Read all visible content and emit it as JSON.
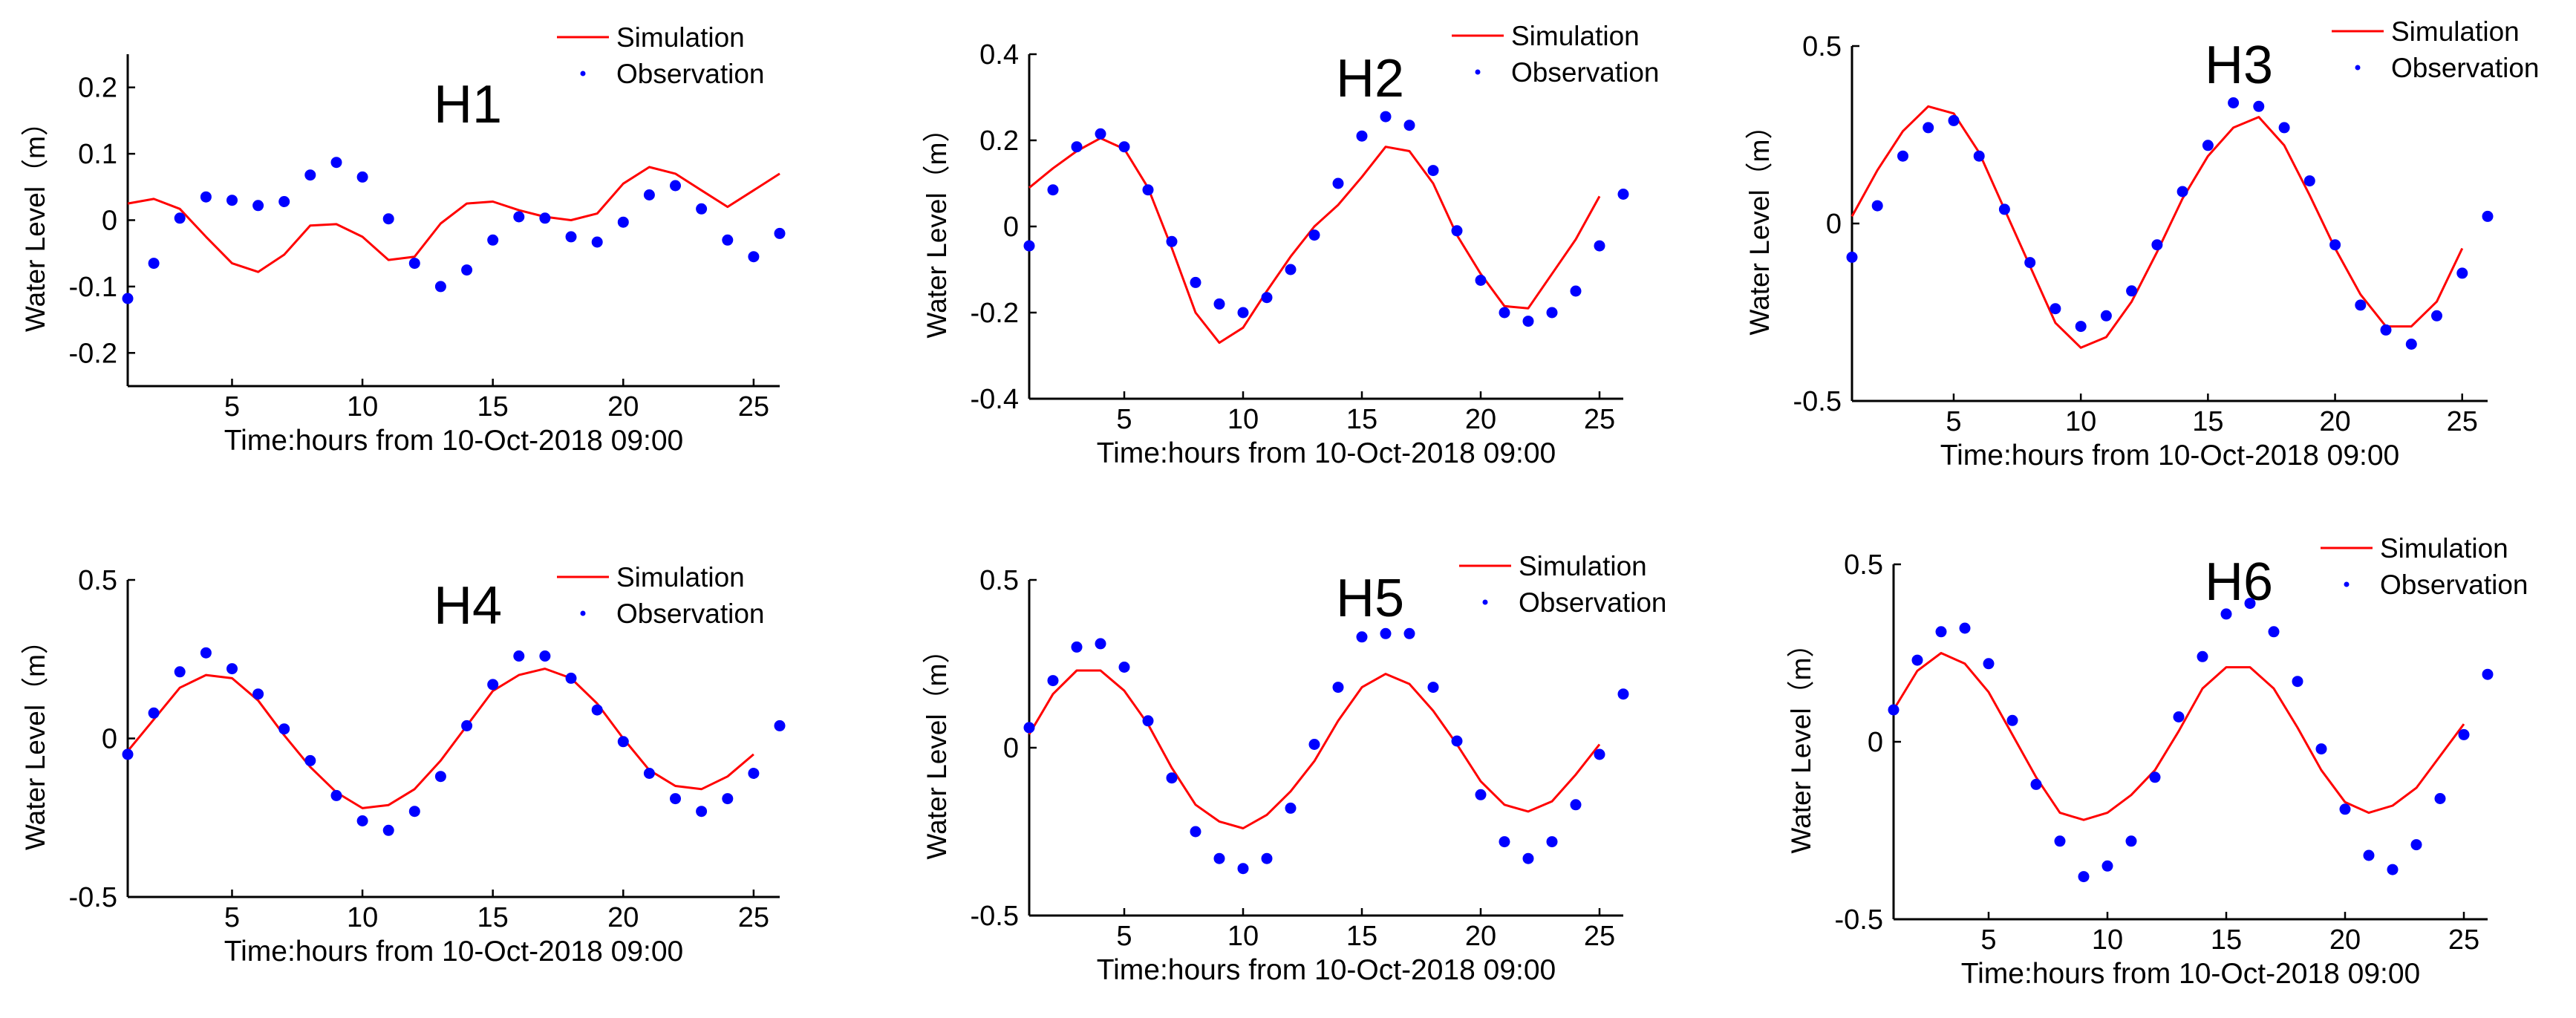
{
  "figure": {
    "colors": {
      "simulation": "#ff0000",
      "observation": "#0000ff",
      "axis": "#000000"
    }
  },
  "chart_data": [
    {
      "type": "line",
      "panel": "H1",
      "title": "H1",
      "xlabel": "Time:hours from 10-Oct-2018 09:00",
      "ylabel": "Water Level（m）",
      "xlim": [
        1,
        26
      ],
      "ylim": [
        -0.25,
        0.25
      ],
      "xticks": [
        5,
        10,
        15,
        20,
        25
      ],
      "yticks": [
        -0.2,
        -0.1,
        0,
        0.1,
        0.2
      ],
      "ytick_labels": [
        "-0.2",
        "-0.1",
        "0",
        "0.1",
        "0.2"
      ],
      "legend": [
        "Simulation",
        "Observation"
      ],
      "legend_position": "top-right",
      "series": [
        {
          "name": "Simulation",
          "style": "line",
          "x": [
            1,
            2,
            3,
            4,
            5,
            6,
            7,
            8,
            9,
            10,
            11,
            12,
            13,
            14,
            15,
            16,
            17,
            18,
            19,
            20,
            21,
            22,
            23,
            24,
            25,
            26
          ],
          "values": [
            0.025,
            0.032,
            0.017,
            -0.025,
            -0.065,
            -0.078,
            -0.052,
            -0.008,
            -0.006,
            -0.025,
            -0.06,
            -0.055,
            -0.005,
            0.025,
            0.028,
            0.015,
            0.005,
            0.0,
            0.01,
            0.055,
            0.08,
            0.07,
            0.045,
            0.02,
            0.045,
            0.07
          ]
        },
        {
          "name": "Observation",
          "style": "markers",
          "x": [
            1,
            2,
            3,
            4,
            5,
            6,
            7,
            8,
            9,
            10,
            11,
            12,
            13,
            14,
            15,
            16,
            17,
            18,
            19,
            20,
            21,
            22,
            23,
            24,
            25,
            26
          ],
          "values": [
            -0.118,
            -0.065,
            0.003,
            0.035,
            0.03,
            0.022,
            0.028,
            0.068,
            0.087,
            0.065,
            0.002,
            -0.065,
            -0.1,
            -0.075,
            -0.03,
            0.005,
            0.003,
            -0.025,
            -0.033,
            -0.003,
            0.038,
            0.052,
            0.017,
            -0.03,
            -0.055,
            -0.02
          ]
        }
      ]
    },
    {
      "type": "line",
      "panel": "H2",
      "title": "H2",
      "xlabel": "Time:hours from 10-Oct-2018 09:00",
      "ylabel": "Water Level（m）",
      "xlim": [
        1,
        26
      ],
      "ylim": [
        -0.4,
        0.4
      ],
      "xticks": [
        5,
        10,
        15,
        20,
        25
      ],
      "yticks": [
        -0.4,
        -0.2,
        0,
        0.2,
        0.4
      ],
      "ytick_labels": [
        "-0.4",
        "-0.2",
        "0",
        "0.2",
        "0.4"
      ],
      "legend": [
        "Simulation",
        "Observation"
      ],
      "legend_position": "top-right",
      "series": [
        {
          "name": "Simulation",
          "style": "line",
          "x": [
            1,
            2,
            3,
            4,
            5,
            6,
            7,
            8,
            9,
            10,
            11,
            12,
            13,
            14,
            15,
            16,
            17,
            18,
            19,
            20,
            21,
            22,
            23,
            24,
            25
          ],
          "values": [
            0.09,
            0.135,
            0.175,
            0.205,
            0.18,
            0.09,
            -0.05,
            -0.2,
            -0.27,
            -0.235,
            -0.15,
            -0.07,
            0.0,
            0.05,
            0.115,
            0.185,
            0.175,
            0.1,
            -0.02,
            -0.11,
            -0.185,
            -0.19,
            -0.11,
            -0.03,
            0.07
          ]
        },
        {
          "name": "Observation",
          "style": "markers",
          "x": [
            1,
            2,
            3,
            4,
            5,
            6,
            7,
            8,
            9,
            10,
            11,
            12,
            13,
            14,
            15,
            16,
            17,
            18,
            19,
            20,
            21,
            22,
            23,
            24,
            25,
            26
          ],
          "values": [
            -0.045,
            0.085,
            0.185,
            0.215,
            0.185,
            0.085,
            -0.035,
            -0.13,
            -0.18,
            -0.2,
            -0.165,
            -0.1,
            -0.02,
            0.1,
            0.21,
            0.255,
            0.235,
            0.13,
            -0.01,
            -0.125,
            -0.2,
            -0.22,
            -0.2,
            -0.15,
            -0.045,
            0.075
          ]
        }
      ]
    },
    {
      "type": "line",
      "panel": "H3",
      "title": "H3",
      "xlabel": "Time:hours from 10-Oct-2018 09:00",
      "ylabel": "Water Level（m）",
      "xlim": [
        1,
        26
      ],
      "ylim": [
        -0.5,
        0.5
      ],
      "xticks": [
        5,
        10,
        15,
        20,
        25
      ],
      "yticks": [
        -0.5,
        0,
        0.5
      ],
      "ytick_labels": [
        "-0.5",
        "0",
        "0.5"
      ],
      "legend": [
        "Simulation",
        "Observation"
      ],
      "legend_position": "top-right",
      "series": [
        {
          "name": "Simulation",
          "style": "line",
          "x": [
            1,
            2,
            3,
            4,
            5,
            6,
            7,
            8,
            9,
            10,
            11,
            12,
            13,
            14,
            15,
            16,
            17,
            18,
            19,
            20,
            21,
            22,
            23,
            24,
            25
          ],
          "values": [
            0.02,
            0.15,
            0.26,
            0.33,
            0.31,
            0.2,
            0.04,
            -0.12,
            -0.28,
            -0.35,
            -0.32,
            -0.22,
            -0.08,
            0.07,
            0.19,
            0.27,
            0.3,
            0.22,
            0.08,
            -0.07,
            -0.2,
            -0.29,
            -0.29,
            -0.22,
            -0.07
          ]
        },
        {
          "name": "Observation",
          "style": "markers",
          "x": [
            1,
            2,
            3,
            4,
            5,
            6,
            7,
            8,
            9,
            10,
            11,
            12,
            13,
            14,
            15,
            16,
            17,
            18,
            19,
            20,
            21,
            22,
            23,
            24,
            25,
            26
          ],
          "values": [
            -0.095,
            0.05,
            0.19,
            0.27,
            0.29,
            0.19,
            0.04,
            -0.11,
            -0.24,
            -0.29,
            -0.26,
            -0.19,
            -0.06,
            0.09,
            0.22,
            0.34,
            0.33,
            0.27,
            0.12,
            -0.06,
            -0.23,
            -0.3,
            -0.34,
            -0.26,
            -0.14,
            0.02
          ]
        }
      ]
    },
    {
      "type": "line",
      "panel": "H4",
      "title": "H4",
      "xlabel": "Time:hours from 10-Oct-2018 09:00",
      "ylabel": "Water Level（m）",
      "xlim": [
        1,
        26
      ],
      "ylim": [
        -0.5,
        0.5
      ],
      "xticks": [
        5,
        10,
        15,
        20,
        25
      ],
      "yticks": [
        -0.5,
        0,
        0.5
      ],
      "ytick_labels": [
        "-0.5",
        "0",
        "0.5"
      ],
      "legend": [
        "Simulation",
        "Observation"
      ],
      "legend_position": "top-right",
      "series": [
        {
          "name": "Simulation",
          "style": "line",
          "x": [
            1,
            2,
            3,
            4,
            5,
            6,
            7,
            8,
            9,
            10,
            11,
            12,
            13,
            14,
            15,
            16,
            17,
            18,
            19,
            20,
            21,
            22,
            23,
            24,
            25
          ],
          "values": [
            -0.04,
            0.06,
            0.16,
            0.2,
            0.19,
            0.12,
            0.01,
            -0.09,
            -0.17,
            -0.22,
            -0.21,
            -0.16,
            -0.07,
            0.04,
            0.15,
            0.2,
            0.22,
            0.19,
            0.11,
            0.0,
            -0.1,
            -0.15,
            -0.16,
            -0.12,
            -0.05
          ]
        },
        {
          "name": "Observation",
          "style": "markers",
          "x": [
            1,
            2,
            3,
            4,
            5,
            6,
            7,
            8,
            9,
            10,
            11,
            12,
            13,
            14,
            15,
            16,
            17,
            18,
            19,
            20,
            21,
            22,
            23,
            24,
            25,
            26
          ],
          "values": [
            -0.05,
            0.08,
            0.21,
            0.27,
            0.22,
            0.14,
            0.03,
            -0.07,
            -0.18,
            -0.26,
            -0.29,
            -0.23,
            -0.12,
            0.04,
            0.17,
            0.26,
            0.26,
            0.19,
            0.09,
            -0.01,
            -0.11,
            -0.19,
            -0.23,
            -0.19,
            -0.11,
            0.04
          ]
        }
      ]
    },
    {
      "type": "line",
      "panel": "H5",
      "title": "H5",
      "xlabel": "Time:hours from 10-Oct-2018 09:00",
      "ylabel": "Water Level（m）",
      "xlim": [
        1,
        26
      ],
      "ylim": [
        -0.5,
        0.5
      ],
      "xticks": [
        5,
        10,
        15,
        20,
        25
      ],
      "yticks": [
        -0.5,
        0,
        0.5
      ],
      "ytick_labels": [
        "-0.5",
        "0",
        "0.5"
      ],
      "legend": [
        "Simulation",
        "Observation"
      ],
      "legend_position": "top-right",
      "series": [
        {
          "name": "Simulation",
          "style": "line",
          "x": [
            1,
            2,
            3,
            4,
            5,
            6,
            7,
            8,
            9,
            10,
            11,
            12,
            13,
            14,
            15,
            16,
            17,
            18,
            19,
            20,
            21,
            22,
            23,
            24,
            25
          ],
          "values": [
            0.04,
            0.16,
            0.23,
            0.23,
            0.17,
            0.07,
            -0.06,
            -0.17,
            -0.22,
            -0.24,
            -0.2,
            -0.13,
            -0.04,
            0.08,
            0.18,
            0.22,
            0.19,
            0.11,
            0.01,
            -0.1,
            -0.17,
            -0.19,
            -0.16,
            -0.08,
            0.01
          ]
        },
        {
          "name": "Observation",
          "style": "markers",
          "x": [
            1,
            2,
            3,
            4,
            5,
            6,
            7,
            8,
            9,
            10,
            11,
            12,
            13,
            14,
            15,
            16,
            17,
            18,
            19,
            20,
            21,
            22,
            23,
            24,
            25,
            26
          ],
          "values": [
            0.06,
            0.2,
            0.3,
            0.31,
            0.24,
            0.08,
            -0.09,
            -0.25,
            -0.33,
            -0.36,
            -0.33,
            -0.18,
            0.01,
            0.18,
            0.33,
            0.34,
            0.34,
            0.18,
            0.02,
            -0.14,
            -0.28,
            -0.33,
            -0.28,
            -0.17,
            -0.02,
            0.16
          ]
        }
      ]
    },
    {
      "type": "line",
      "panel": "H6",
      "title": "H6",
      "xlabel": "Time:hours from 10-Oct-2018 09:00",
      "ylabel": "Water Level（m）",
      "xlim": [
        1,
        26
      ],
      "ylim": [
        -0.5,
        0.5
      ],
      "xticks": [
        5,
        10,
        15,
        20,
        25
      ],
      "yticks": [
        -0.5,
        0,
        0.5
      ],
      "ytick_labels": [
        "-0.5",
        "0",
        "0.5"
      ],
      "legend": [
        "Simulation",
        "Observation"
      ],
      "legend_position": "top-right",
      "series": [
        {
          "name": "Simulation",
          "style": "line",
          "x": [
            1,
            2,
            3,
            4,
            5,
            6,
            7,
            8,
            9,
            10,
            11,
            12,
            13,
            14,
            15,
            16,
            17,
            18,
            19,
            20,
            21,
            22,
            23,
            24,
            25
          ],
          "values": [
            0.09,
            0.2,
            0.25,
            0.22,
            0.14,
            0.02,
            -0.1,
            -0.2,
            -0.22,
            -0.2,
            -0.15,
            -0.08,
            0.03,
            0.15,
            0.21,
            0.21,
            0.15,
            0.04,
            -0.08,
            -0.17,
            -0.2,
            -0.18,
            -0.13,
            -0.04,
            0.05
          ]
        },
        {
          "name": "Observation",
          "style": "markers",
          "x": [
            1,
            2,
            3,
            4,
            5,
            6,
            7,
            8,
            9,
            10,
            11,
            12,
            13,
            14,
            15,
            16,
            17,
            18,
            19,
            20,
            21,
            22,
            23,
            24,
            25,
            26
          ],
          "values": [
            0.09,
            0.23,
            0.31,
            0.32,
            0.22,
            0.06,
            -0.12,
            -0.28,
            -0.38,
            -0.35,
            -0.28,
            -0.1,
            0.07,
            0.24,
            0.36,
            0.39,
            0.31,
            0.17,
            -0.02,
            -0.19,
            -0.32,
            -0.36,
            -0.29,
            -0.16,
            0.02,
            0.19
          ]
        }
      ]
    }
  ]
}
